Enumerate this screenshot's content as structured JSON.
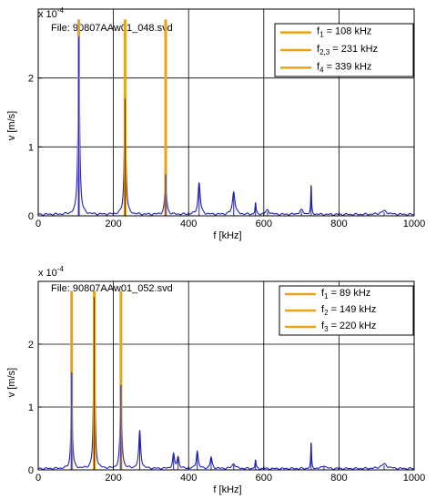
{
  "chart_data": [
    {
      "type": "line",
      "file_label": "File: 90807AAw01_048.svd",
      "scale_label": "x 10",
      "scale_exp": "-4",
      "xlabel": "f [kHz]",
      "ylabel": "v [m/s]",
      "xlim": [
        0,
        1000
      ],
      "ylim": [
        0,
        3.0
      ],
      "xticks": [
        "0",
        "200",
        "400",
        "600",
        "800",
        "1000"
      ],
      "yticks": [
        "0",
        "1",
        "2"
      ],
      "grid": true,
      "legend_position": "top-right",
      "series": [
        {
          "color": "#1f1fb4",
          "peaks": [
            {
              "f": 108,
              "v": 2.6,
              "w": 2.5
            },
            {
              "f": 231,
              "v": 1.7,
              "w": 2.5
            },
            {
              "f": 339,
              "v": 0.6,
              "w": 2.5
            },
            {
              "f": 428,
              "v": 0.46,
              "w": 3.5
            },
            {
              "f": 520,
              "v": 0.33,
              "w": 4
            },
            {
              "f": 578,
              "v": 0.17,
              "w": 1.5
            },
            {
              "f": 610,
              "v": 0.06,
              "w": 6
            },
            {
              "f": 700,
              "v": 0.06,
              "w": 6
            },
            {
              "f": 726,
              "v": 0.43,
              "w": 1.2
            },
            {
              "f": 920,
              "v": 0.05,
              "w": 10
            }
          ]
        }
      ],
      "markers": [
        {
          "f": 108,
          "v": 2.85,
          "color": "#e8a317"
        },
        {
          "f": 231,
          "v": 2.85,
          "color": "#e8a317"
        },
        {
          "f": 339,
          "v": 2.85,
          "color": "#e8a317"
        }
      ],
      "legend": [
        {
          "sym": "f",
          "sub": "1",
          "text": " = 108 kHz"
        },
        {
          "sym": "f",
          "sub": "2,3",
          "text": " = 231 kHz"
        },
        {
          "sym": "f",
          "sub": "4",
          "text": " = 339 kHz"
        }
      ]
    },
    {
      "type": "line",
      "file_label": "File: 90807AAw01_052.svd",
      "scale_label": "x 10",
      "scale_exp": "-4",
      "xlabel": "f [kHz]",
      "ylabel": "v [m/s]",
      "xlim": [
        0,
        1000
      ],
      "ylim": [
        0,
        3.0
      ],
      "xticks": [
        "0",
        "200",
        "400",
        "600",
        "800",
        "1000"
      ],
      "yticks": [
        "0",
        "1",
        "2"
      ],
      "grid": true,
      "legend_position": "top-right",
      "series": [
        {
          "color": "#1f1fb4",
          "peaks": [
            {
              "f": 89,
              "v": 1.55,
              "w": 2
            },
            {
              "f": 149,
              "v": 2.75,
              "w": 2
            },
            {
              "f": 220,
              "v": 1.35,
              "w": 2.5
            },
            {
              "f": 270,
              "v": 0.6,
              "w": 3
            },
            {
              "f": 360,
              "v": 0.22,
              "w": 3
            },
            {
              "f": 372,
              "v": 0.18,
              "w": 3
            },
            {
              "f": 423,
              "v": 0.28,
              "w": 3
            },
            {
              "f": 460,
              "v": 0.18,
              "w": 3
            },
            {
              "f": 520,
              "v": 0.08,
              "w": 5
            },
            {
              "f": 578,
              "v": 0.14,
              "w": 1.5
            },
            {
              "f": 726,
              "v": 0.42,
              "w": 1.2
            },
            {
              "f": 760,
              "v": 0.05,
              "w": 5
            },
            {
              "f": 920,
              "v": 0.07,
              "w": 10
            }
          ]
        }
      ],
      "markers": [
        {
          "f": 89,
          "v": 2.85,
          "color": "#e8a317"
        },
        {
          "f": 149,
          "v": 2.85,
          "color": "#e8a317"
        },
        {
          "f": 220,
          "v": 2.85,
          "color": "#e8a317"
        }
      ],
      "legend": [
        {
          "sym": "f",
          "sub": "1",
          "text": " = 89 kHz"
        },
        {
          "sym": "f",
          "sub": "2",
          "text": " = 149 kHz"
        },
        {
          "sym": "f",
          "sub": "3",
          "text": " = 220 kHz"
        }
      ]
    }
  ]
}
